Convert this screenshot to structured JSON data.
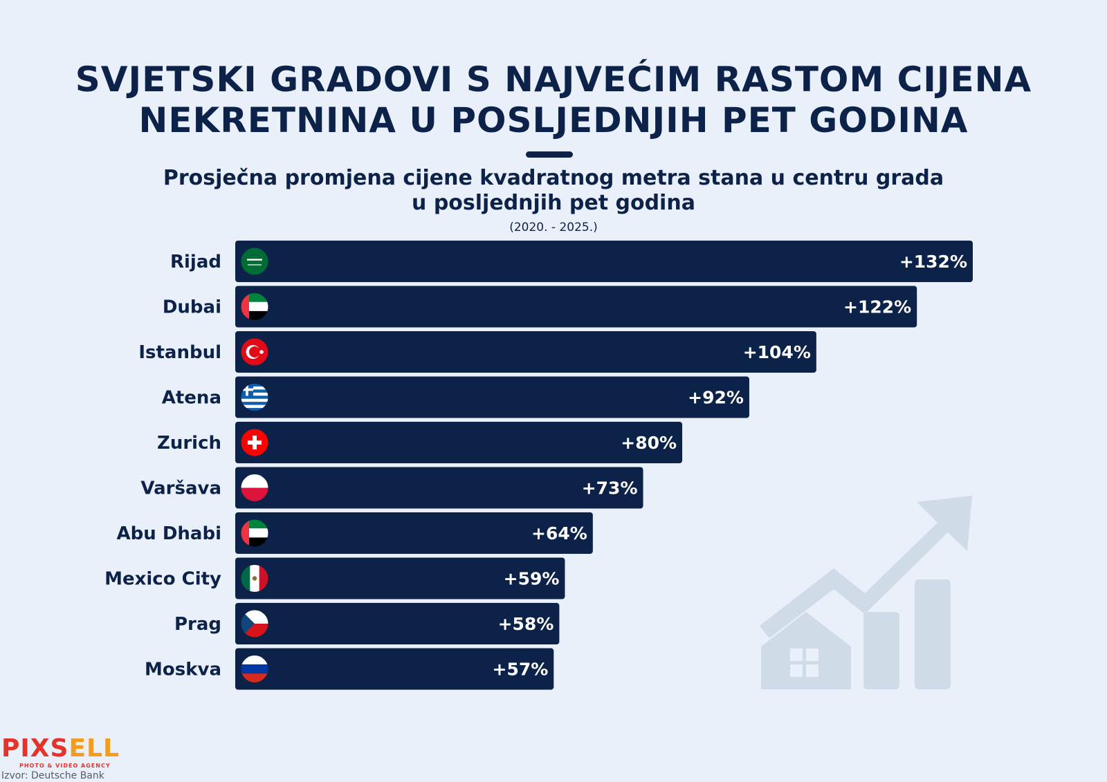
{
  "header": {
    "title_line1": "SVJETSKI GRADOVI S NAJVEĆIM RASTOM CIJENA",
    "title_line2": "NEKRETNINA U POSLJEDNJIH PET GODINA",
    "subtitle_line1": "Prosječna promjena cijene kvadratnog metra stana u centru grada",
    "subtitle_line2": "u posljednjih pet godina",
    "period": "(2020. - 2025.)"
  },
  "chart_data": {
    "type": "bar",
    "orientation": "horizontal",
    "categories": [
      "Rijad",
      "Dubai",
      "Istanbul",
      "Atena",
      "Zurich",
      "Varšava",
      "Abu Dhabi",
      "Mexico City",
      "Prag",
      "Moskva"
    ],
    "values": [
      132,
      122,
      104,
      92,
      80,
      73,
      64,
      59,
      58,
      57
    ],
    "value_labels": [
      "+132%",
      "+122%",
      "+104%",
      "+92%",
      "+80%",
      "+73%",
      "+64%",
      "+59%",
      "+58%",
      "+57%"
    ],
    "flags": [
      "saudi-arabia-flag-icon",
      "uae-flag-icon",
      "turkey-flag-icon",
      "greece-flag-icon",
      "switzerland-flag-icon",
      "poland-flag-icon",
      "uae-flag-icon",
      "mexico-flag-icon",
      "czech-flag-icon",
      "russia-flag-icon"
    ],
    "unit": "%",
    "xlim": [
      0,
      132
    ],
    "bar_color": "#0d2249",
    "grid": false,
    "legend": "none"
  },
  "branding": {
    "logo_main": "PIXS",
    "logo_tail": "ELL",
    "logo_tagline": "PHOTO & VIDEO AGENCY",
    "source": "Izvor: Deutsche Bank"
  },
  "colors": {
    "background": "#e9f0fa",
    "text": "#0d2249",
    "logo_red": "#e5332a",
    "logo_orange": "#f39c1e",
    "watermark": "#d0dbe8"
  },
  "decoration": {
    "watermark_icon": "house-growth-arrow-icon"
  }
}
